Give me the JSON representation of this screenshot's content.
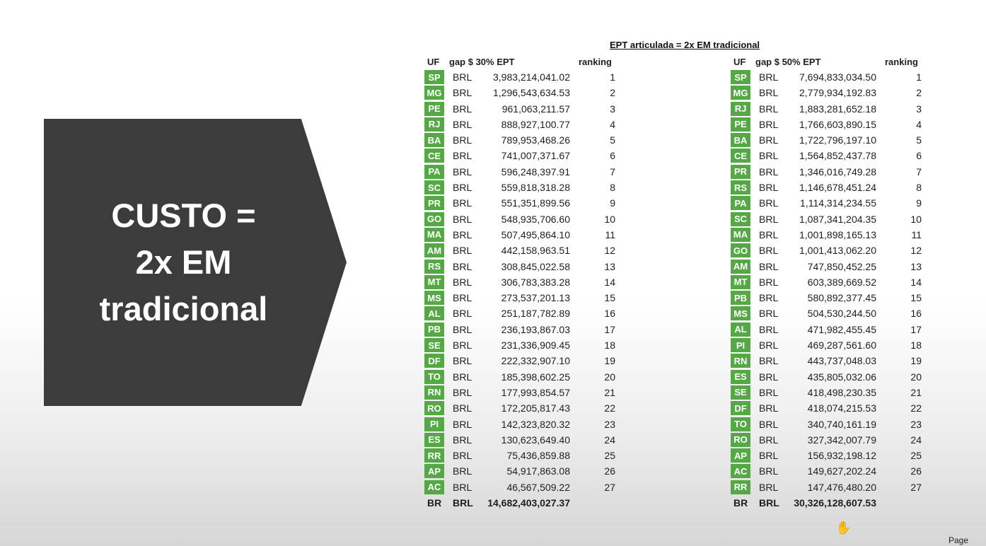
{
  "slide": {
    "heading_lines": [
      "CUSTO =",
      "2x EM",
      "tradicional"
    ],
    "table_title": "EPT articulada = 2x EM tradicional",
    "page_label": "Page",
    "uf_color": "#55a845"
  },
  "table_left": {
    "headers": {
      "uf": "UF",
      "gap": "gap $ 30% EPT",
      "ranking": "ranking"
    },
    "rows": [
      {
        "uf": "SP",
        "cur": "BRL",
        "value": "3,983,214,041.02",
        "rank": "1"
      },
      {
        "uf": "MG",
        "cur": "BRL",
        "value": "1,296,543,634.53",
        "rank": "2"
      },
      {
        "uf": "PE",
        "cur": "BRL",
        "value": "961,063,211.57",
        "rank": "3"
      },
      {
        "uf": "RJ",
        "cur": "BRL",
        "value": "888,927,100.77",
        "rank": "4"
      },
      {
        "uf": "BA",
        "cur": "BRL",
        "value": "789,953,468.26",
        "rank": "5"
      },
      {
        "uf": "CE",
        "cur": "BRL",
        "value": "741,007,371.67",
        "rank": "6"
      },
      {
        "uf": "PA",
        "cur": "BRL",
        "value": "596,248,397.91",
        "rank": "7"
      },
      {
        "uf": "SC",
        "cur": "BRL",
        "value": "559,818,318.28",
        "rank": "8"
      },
      {
        "uf": "PR",
        "cur": "BRL",
        "value": "551,351,899.56",
        "rank": "9"
      },
      {
        "uf": "GO",
        "cur": "BRL",
        "value": "548,935,706.60",
        "rank": "10"
      },
      {
        "uf": "MA",
        "cur": "BRL",
        "value": "507,495,864.10",
        "rank": "11"
      },
      {
        "uf": "AM",
        "cur": "BRL",
        "value": "442,158,963.51",
        "rank": "12"
      },
      {
        "uf": "RS",
        "cur": "BRL",
        "value": "308,845,022.58",
        "rank": "13"
      },
      {
        "uf": "MT",
        "cur": "BRL",
        "value": "306,783,383.28",
        "rank": "14"
      },
      {
        "uf": "MS",
        "cur": "BRL",
        "value": "273,537,201.13",
        "rank": "15"
      },
      {
        "uf": "AL",
        "cur": "BRL",
        "value": "251,187,782.89",
        "rank": "16"
      },
      {
        "uf": "PB",
        "cur": "BRL",
        "value": "236,193,867.03",
        "rank": "17"
      },
      {
        "uf": "SE",
        "cur": "BRL",
        "value": "231,336,909.45",
        "rank": "18"
      },
      {
        "uf": "DF",
        "cur": "BRL",
        "value": "222,332,907.10",
        "rank": "19"
      },
      {
        "uf": "TO",
        "cur": "BRL",
        "value": "185,398,602.25",
        "rank": "20"
      },
      {
        "uf": "RN",
        "cur": "BRL",
        "value": "177,993,854.57",
        "rank": "21"
      },
      {
        "uf": "RO",
        "cur": "BRL",
        "value": "172,205,817.43",
        "rank": "22"
      },
      {
        "uf": "PI",
        "cur": "BRL",
        "value": "142,323,820.32",
        "rank": "23"
      },
      {
        "uf": "ES",
        "cur": "BRL",
        "value": "130,623,649.40",
        "rank": "24"
      },
      {
        "uf": "RR",
        "cur": "BRL",
        "value": "75,436,859.88",
        "rank": "25"
      },
      {
        "uf": "AP",
        "cur": "BRL",
        "value": "54,917,863.08",
        "rank": "26"
      },
      {
        "uf": "AC",
        "cur": "BRL",
        "value": "46,567,509.22",
        "rank": "27"
      }
    ],
    "total": {
      "uf": "BR",
      "cur": "BRL",
      "value": "14,682,403,027.37"
    }
  },
  "table_right": {
    "headers": {
      "uf": "UF",
      "gap": "gap $ 50% EPT",
      "ranking": "ranking"
    },
    "rows": [
      {
        "uf": "SP",
        "cur": "BRL",
        "value": "7,694,833,034.50",
        "rank": "1"
      },
      {
        "uf": "MG",
        "cur": "BRL",
        "value": "2,779,934,192.83",
        "rank": "2"
      },
      {
        "uf": "RJ",
        "cur": "BRL",
        "value": "1,883,281,652.18",
        "rank": "3"
      },
      {
        "uf": "PE",
        "cur": "BRL",
        "value": "1,766,603,890.15",
        "rank": "4"
      },
      {
        "uf": "BA",
        "cur": "BRL",
        "value": "1,722,796,197.10",
        "rank": "5"
      },
      {
        "uf": "CE",
        "cur": "BRL",
        "value": "1,564,852,437.78",
        "rank": "6"
      },
      {
        "uf": "PR",
        "cur": "BRL",
        "value": "1,346,016,749.28",
        "rank": "7"
      },
      {
        "uf": "RS",
        "cur": "BRL",
        "value": "1,146,678,451.24",
        "rank": "8"
      },
      {
        "uf": "PA",
        "cur": "BRL",
        "value": "1,114,314,234.55",
        "rank": "9"
      },
      {
        "uf": "SC",
        "cur": "BRL",
        "value": "1,087,341,204.35",
        "rank": "10"
      },
      {
        "uf": "MA",
        "cur": "BRL",
        "value": "1,001,898,165.13",
        "rank": "11"
      },
      {
        "uf": "GO",
        "cur": "BRL",
        "value": "1,001,413,062.20",
        "rank": "12"
      },
      {
        "uf": "AM",
        "cur": "BRL",
        "value": "747,850,452.25",
        "rank": "13"
      },
      {
        "uf": "MT",
        "cur": "BRL",
        "value": "603,389,669.52",
        "rank": "14"
      },
      {
        "uf": "PB",
        "cur": "BRL",
        "value": "580,892,377.45",
        "rank": "15"
      },
      {
        "uf": "MS",
        "cur": "BRL",
        "value": "504,530,244.50",
        "rank": "16"
      },
      {
        "uf": "AL",
        "cur": "BRL",
        "value": "471,982,455.45",
        "rank": "17"
      },
      {
        "uf": "PI",
        "cur": "BRL",
        "value": "469,287,561.60",
        "rank": "18"
      },
      {
        "uf": "RN",
        "cur": "BRL",
        "value": "443,737,048.03",
        "rank": "19"
      },
      {
        "uf": "ES",
        "cur": "BRL",
        "value": "435,805,032.06",
        "rank": "20"
      },
      {
        "uf": "SE",
        "cur": "BRL",
        "value": "418,498,230.35",
        "rank": "21"
      },
      {
        "uf": "DF",
        "cur": "BRL",
        "value": "418,074,215.53",
        "rank": "22"
      },
      {
        "uf": "TO",
        "cur": "BRL",
        "value": "340,740,161.19",
        "rank": "23"
      },
      {
        "uf": "RO",
        "cur": "BRL",
        "value": "327,342,007.79",
        "rank": "24"
      },
      {
        "uf": "AP",
        "cur": "BRL",
        "value": "156,932,198.12",
        "rank": "25"
      },
      {
        "uf": "AC",
        "cur": "BRL",
        "value": "149,627,202.24",
        "rank": "26"
      },
      {
        "uf": "RR",
        "cur": "BRL",
        "value": "147,476,480.20",
        "rank": "27"
      }
    ],
    "total": {
      "uf": "BR",
      "cur": "BRL",
      "value": "30,326,128,607.53"
    }
  },
  "cursor": {
    "icon": "hand-cursor-icon"
  }
}
